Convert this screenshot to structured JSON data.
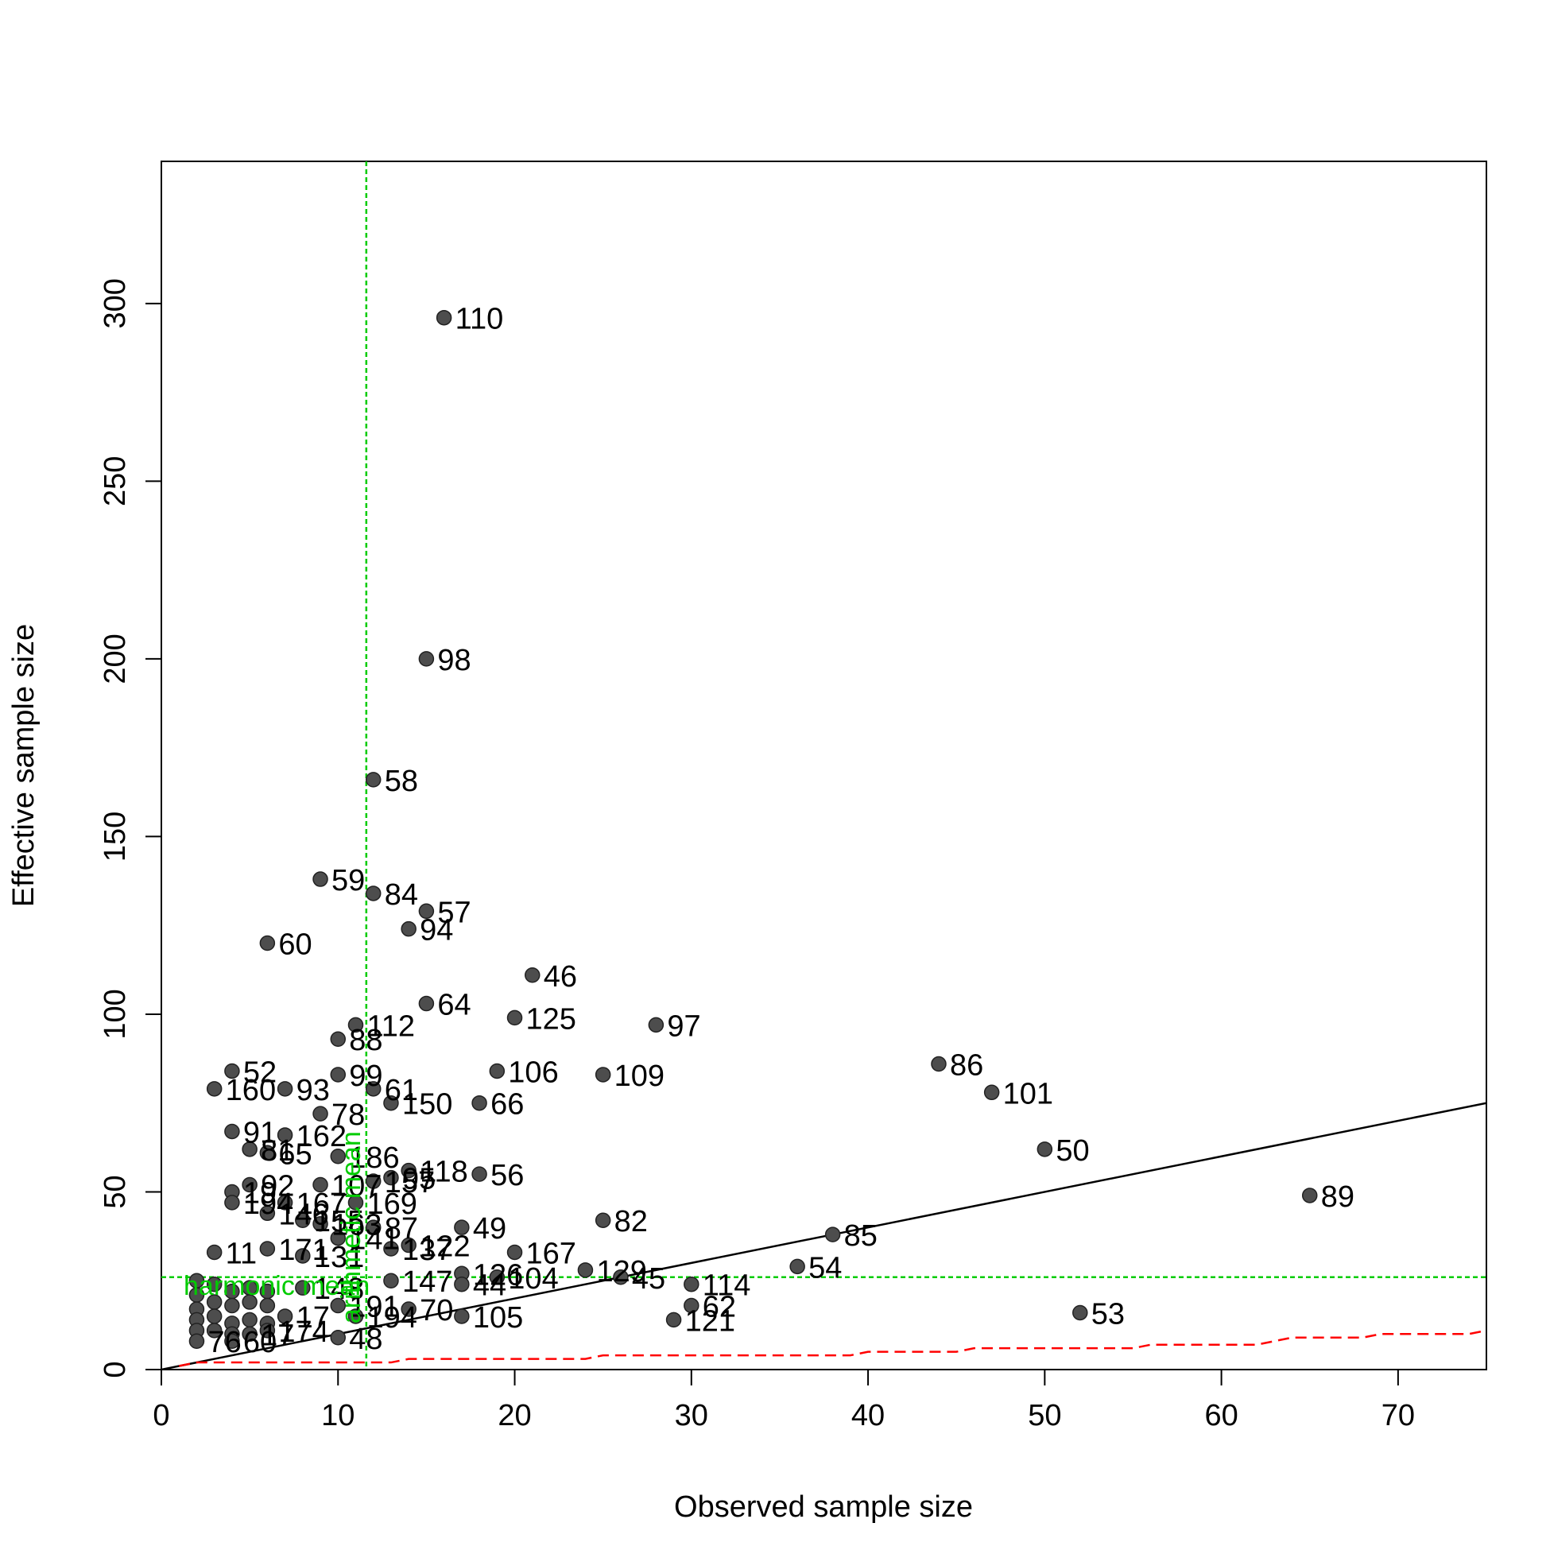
{
  "chart_data": {
    "type": "scatter",
    "title": "",
    "xlabel": "Observed sample size",
    "ylabel": "Effective sample size",
    "xlim": [
      0,
      75
    ],
    "ylim": [
      0,
      340
    ],
    "xticks": [
      0,
      10,
      20,
      30,
      40,
      50,
      60,
      70
    ],
    "yticks": [
      0,
      50,
      100,
      150,
      200,
      250,
      300
    ],
    "grid": false,
    "legend": "none",
    "colors": {
      "points": "#4d4d4d",
      "points_edge": "#222222",
      "identity_line": "#000000",
      "reference_lines": "#00cc00",
      "lower_bound": "#ff0000"
    },
    "points": [
      {
        "x": 16,
        "y": 296,
        "label": "110"
      },
      {
        "x": 15,
        "y": 200,
        "label": "98"
      },
      {
        "x": 12,
        "y": 166,
        "label": "58"
      },
      {
        "x": 9,
        "y": 138,
        "label": "59"
      },
      {
        "x": 12,
        "y": 134,
        "label": "84"
      },
      {
        "x": 15,
        "y": 129,
        "label": "57"
      },
      {
        "x": 14,
        "y": 124,
        "label": "94"
      },
      {
        "x": 6,
        "y": 120,
        "label": "60"
      },
      {
        "x": 21,
        "y": 111,
        "label": "46"
      },
      {
        "x": 15,
        "y": 103,
        "label": "64"
      },
      {
        "x": 20,
        "y": 99,
        "label": "125"
      },
      {
        "x": 28,
        "y": 97,
        "label": "97"
      },
      {
        "x": 11,
        "y": 97,
        "label": "112"
      },
      {
        "x": 10,
        "y": 93,
        "label": "88"
      },
      {
        "x": 44,
        "y": 86,
        "label": "86"
      },
      {
        "x": 19,
        "y": 84,
        "label": "106"
      },
      {
        "x": 4,
        "y": 84,
        "label": "52"
      },
      {
        "x": 25,
        "y": 83,
        "label": "109"
      },
      {
        "x": 10,
        "y": 83,
        "label": "99"
      },
      {
        "x": 3,
        "y": 79,
        "label": "160"
      },
      {
        "x": 7,
        "y": 79,
        "label": "93"
      },
      {
        "x": 12,
        "y": 79,
        "label": "61"
      },
      {
        "x": 47,
        "y": 78,
        "label": "101"
      },
      {
        "x": 13,
        "y": 75,
        "label": "150"
      },
      {
        "x": 18,
        "y": 75,
        "label": "66"
      },
      {
        "x": 9,
        "y": 72,
        "label": "78"
      },
      {
        "x": 4,
        "y": 67,
        "label": "91"
      },
      {
        "x": 7,
        "y": 66,
        "label": "162"
      },
      {
        "x": 5,
        "y": 62,
        "label": "81"
      },
      {
        "x": 6,
        "y": 61,
        "label": "65"
      },
      {
        "x": 50,
        "y": 62,
        "label": "50"
      },
      {
        "x": 10,
        "y": 60,
        "label": "186"
      },
      {
        "x": 14,
        "y": 56,
        "label": "118"
      },
      {
        "x": 18,
        "y": 55,
        "label": "56"
      },
      {
        "x": 13,
        "y": 54,
        "label": "95"
      },
      {
        "x": 12,
        "y": 53,
        "label": "157"
      },
      {
        "x": 5,
        "y": 52,
        "label": "92"
      },
      {
        "x": 9,
        "y": 52,
        "label": "107"
      },
      {
        "x": 4,
        "y": 50,
        "label": "19"
      },
      {
        "x": 65,
        "y": 49,
        "label": "89"
      },
      {
        "x": 11,
        "y": 47,
        "label": "169"
      },
      {
        "x": 4,
        "y": 47,
        "label": "194"
      },
      {
        "x": 7,
        "y": 47,
        "label": "167"
      },
      {
        "x": 6,
        "y": 44,
        "label": "146"
      },
      {
        "x": 8,
        "y": 42,
        "label": "155"
      },
      {
        "x": 25,
        "y": 42,
        "label": "82"
      },
      {
        "x": 9,
        "y": 41,
        "label": "163"
      },
      {
        "x": 17,
        "y": 40,
        "label": "49"
      },
      {
        "x": 12,
        "y": 40,
        "label": "87"
      },
      {
        "x": 38,
        "y": 38,
        "label": "85"
      },
      {
        "x": 10,
        "y": 37,
        "label": "141"
      },
      {
        "x": 14,
        "y": 35,
        "label": "122"
      },
      {
        "x": 13,
        "y": 34,
        "label": "137"
      },
      {
        "x": 6,
        "y": 34,
        "label": "171"
      },
      {
        "x": 3,
        "y": 33,
        "label": "11"
      },
      {
        "x": 20,
        "y": 33,
        "label": "167"
      },
      {
        "x": 8,
        "y": 32,
        "label": "131"
      },
      {
        "x": 36,
        "y": 29,
        "label": "54"
      },
      {
        "x": 24,
        "y": 28,
        "label": "129"
      },
      {
        "x": 17,
        "y": 27,
        "label": "126"
      },
      {
        "x": 19,
        "y": 26,
        "label": "104"
      },
      {
        "x": 26,
        "y": 26,
        "label": "45"
      },
      {
        "x": 13,
        "y": 25,
        "label": "147"
      },
      {
        "x": 30,
        "y": 24,
        "label": "114"
      },
      {
        "x": 17,
        "y": 24,
        "label": "44"
      },
      {
        "x": 8,
        "y": 23,
        "label": "148"
      },
      {
        "x": 2,
        "y": 25,
        "label": ""
      },
      {
        "x": 3,
        "y": 24,
        "label": ""
      },
      {
        "x": 2,
        "y": 21,
        "label": ""
      },
      {
        "x": 4,
        "y": 22,
        "label": ""
      },
      {
        "x": 5,
        "y": 23,
        "label": ""
      },
      {
        "x": 6,
        "y": 22,
        "label": ""
      },
      {
        "x": 3,
        "y": 19,
        "label": ""
      },
      {
        "x": 5,
        "y": 19,
        "label": ""
      },
      {
        "x": 4,
        "y": 18,
        "label": ""
      },
      {
        "x": 6,
        "y": 18,
        "label": ""
      },
      {
        "x": 2,
        "y": 17,
        "label": ""
      },
      {
        "x": 10,
        "y": 18,
        "label": "191"
      },
      {
        "x": 14,
        "y": 17,
        "label": "70"
      },
      {
        "x": 30,
        "y": 18,
        "label": "62"
      },
      {
        "x": 52,
        "y": 16,
        "label": "53"
      },
      {
        "x": 11,
        "y": 15,
        "label": "194"
      },
      {
        "x": 17,
        "y": 15,
        "label": "105"
      },
      {
        "x": 7,
        "y": 15,
        "label": "17"
      },
      {
        "x": 2,
        "y": 14,
        "label": ""
      },
      {
        "x": 3,
        "y": 15,
        "label": ""
      },
      {
        "x": 4,
        "y": 13,
        "label": ""
      },
      {
        "x": 5,
        "y": 14,
        "label": ""
      },
      {
        "x": 6,
        "y": 13,
        "label": ""
      },
      {
        "x": 29,
        "y": 14,
        "label": "121"
      },
      {
        "x": 2,
        "y": 11,
        "label": ""
      },
      {
        "x": 3,
        "y": 11,
        "label": ""
      },
      {
        "x": 4,
        "y": 10,
        "label": ""
      },
      {
        "x": 5,
        "y": 10,
        "label": "17"
      },
      {
        "x": 6,
        "y": 11,
        "label": "174"
      },
      {
        "x": 10,
        "y": 9,
        "label": "48"
      },
      {
        "x": 2,
        "y": 8,
        "label": "76"
      },
      {
        "x": 4,
        "y": 8,
        "label": "60"
      }
    ],
    "reference_lines": [
      {
        "orientation": "vertical",
        "value": 11.6,
        "label": "arithmetic mean",
        "style": "dashed"
      },
      {
        "orientation": "horizontal",
        "value": 26,
        "label": "harmonic mean",
        "style": "dashed"
      }
    ],
    "identity_line": {
      "from": [
        0,
        0
      ],
      "to": [
        75,
        75
      ]
    },
    "lower_bound_line": {
      "style": "dashed",
      "points": [
        [
          1,
          1
        ],
        [
          2,
          2
        ],
        [
          10,
          2
        ],
        [
          13,
          2
        ],
        [
          14,
          3
        ],
        [
          24,
          3
        ],
        [
          25,
          4
        ],
        [
          39,
          4
        ],
        [
          40,
          5
        ],
        [
          45,
          5
        ],
        [
          46,
          6
        ],
        [
          55,
          6
        ],
        [
          56,
          7
        ],
        [
          62,
          7
        ],
        [
          64,
          9
        ],
        [
          68,
          9
        ],
        [
          69,
          10
        ],
        [
          74,
          10
        ],
        [
          75,
          11
        ]
      ]
    }
  }
}
